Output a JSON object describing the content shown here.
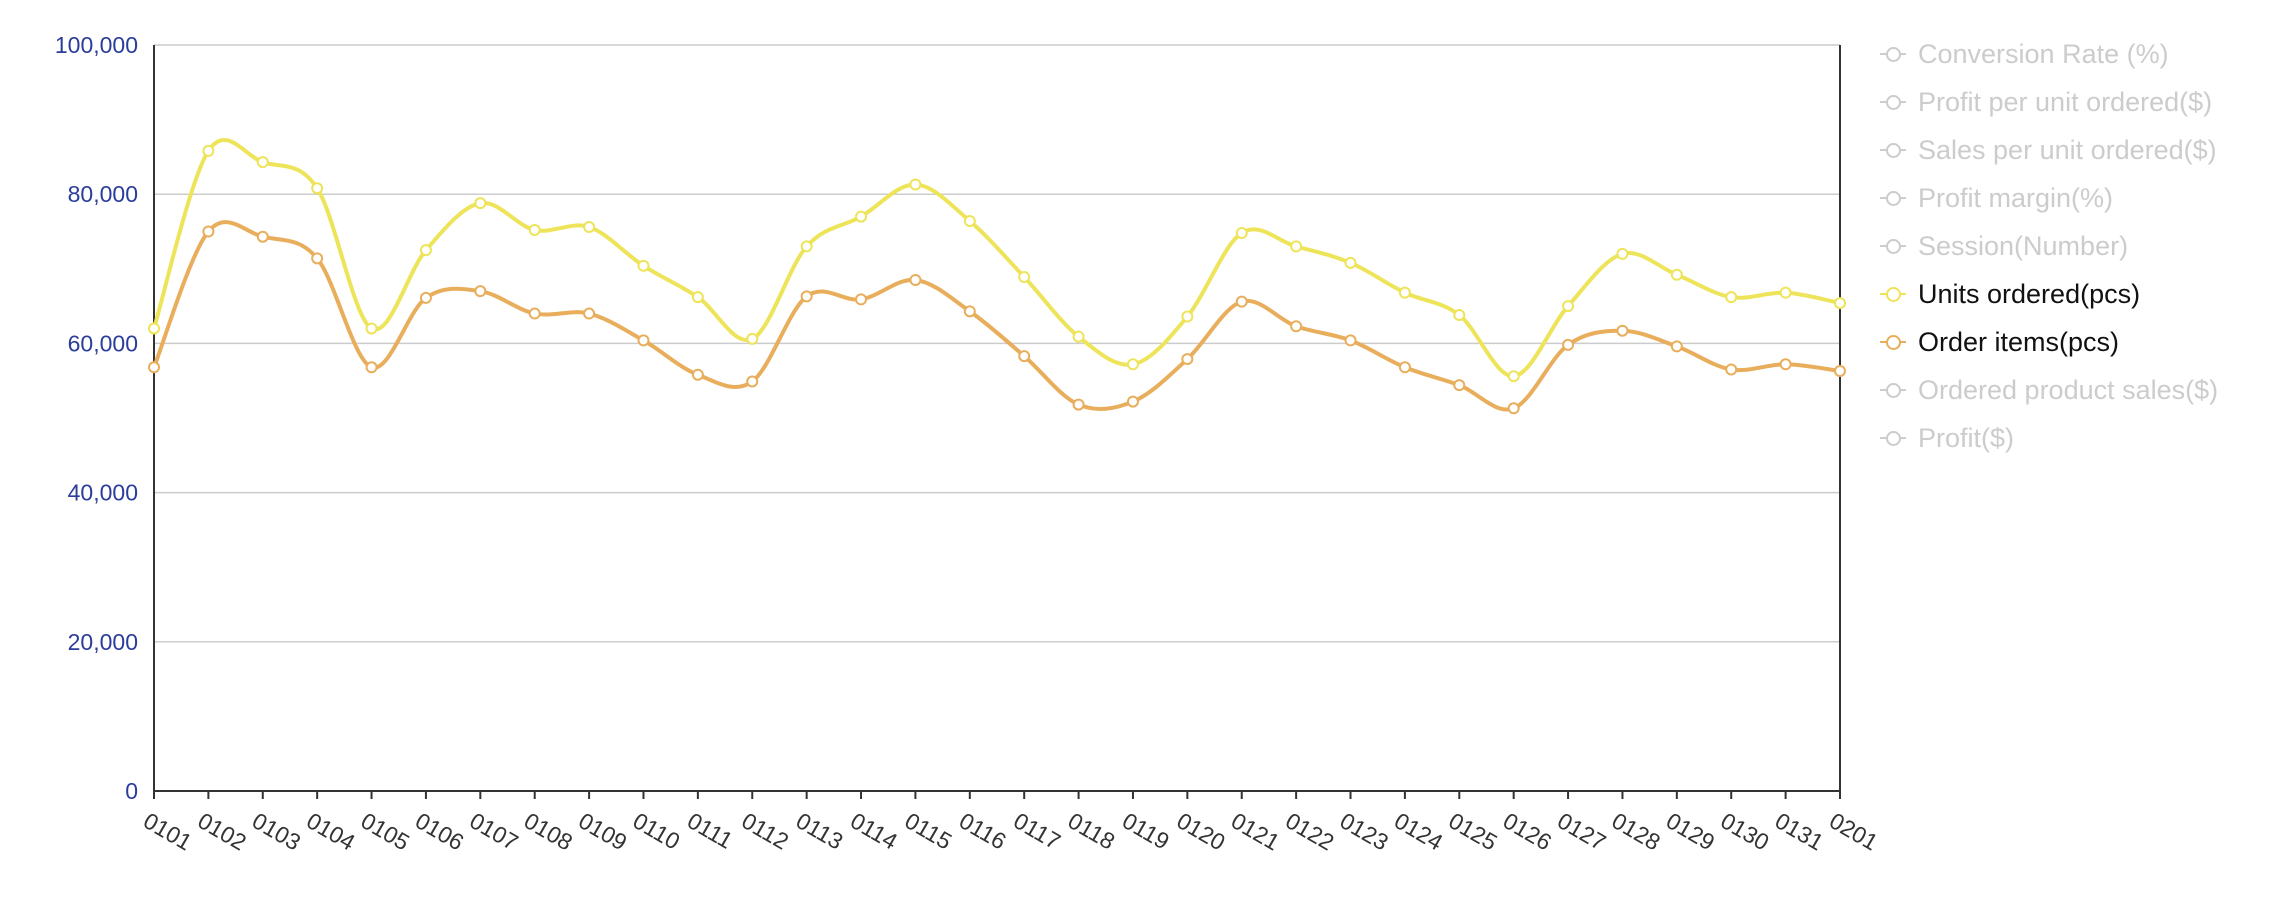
{
  "chart_data": {
    "type": "line",
    "categories": [
      "0101",
      "0102",
      "0103",
      "0104",
      "0105",
      "0106",
      "0107",
      "0108",
      "0109",
      "0110",
      "0111",
      "0112",
      "0113",
      "0114",
      "0115",
      "0116",
      "0117",
      "0118",
      "0119",
      "0120",
      "0121",
      "0122",
      "0123",
      "0124",
      "0125",
      "0126",
      "0127",
      "0128",
      "0129",
      "0130",
      "0131",
      "0201"
    ],
    "ylim": [
      0,
      100000
    ],
    "yticks": [
      "0",
      "20,000",
      "40,000",
      "60,000",
      "80,000",
      "100,000"
    ],
    "ytick_values": [
      0,
      20000,
      40000,
      60000,
      80000,
      100000
    ],
    "grid": true,
    "legend_position": "right",
    "series": [
      {
        "name": "Units ordered(pcs)",
        "color": "#ede45a",
        "visible": true,
        "values": [
          62000,
          85800,
          84300,
          80800,
          62000,
          72500,
          78800,
          75200,
          75600,
          70400,
          66200,
          60600,
          73000,
          77000,
          81300,
          76400,
          68900,
          60900,
          57200,
          63600,
          74800,
          73000,
          70800,
          66800,
          63800,
          55600,
          65000,
          72000,
          69200,
          66200,
          66800,
          65400
        ]
      },
      {
        "name": "Order items(pcs)",
        "color": "#e8ae5c",
        "visible": true,
        "values": [
          56800,
          75000,
          74300,
          71400,
          56800,
          66100,
          67000,
          64000,
          64000,
          60400,
          55800,
          54900,
          66300,
          65900,
          68500,
          64300,
          58300,
          51800,
          52200,
          57900,
          65600,
          62300,
          60400,
          56800,
          54400,
          51300,
          59800,
          61700,
          59600,
          56500,
          57200,
          56300
        ]
      }
    ],
    "legend": [
      {
        "label": "Conversion Rate (%)",
        "active": false
      },
      {
        "label": "Profit per unit ordered($)",
        "active": false
      },
      {
        "label": "Sales per unit ordered($)",
        "active": false
      },
      {
        "label": "Profit margin(%)",
        "active": false
      },
      {
        "label": "Session(Number)",
        "active": false
      },
      {
        "label": "Units ordered(pcs)",
        "active": true,
        "color": "#ede45a"
      },
      {
        "label": "Order items(pcs)",
        "active": true,
        "color": "#e8ae5c"
      },
      {
        "label": "Ordered product sales($)",
        "active": false
      },
      {
        "label": "Profit($)",
        "active": false
      }
    ],
    "colors": {
      "axis_label": "#2b3d9a",
      "category_label": "#333333",
      "grid": "#cccccc",
      "inactive": "#cccccc"
    }
  }
}
